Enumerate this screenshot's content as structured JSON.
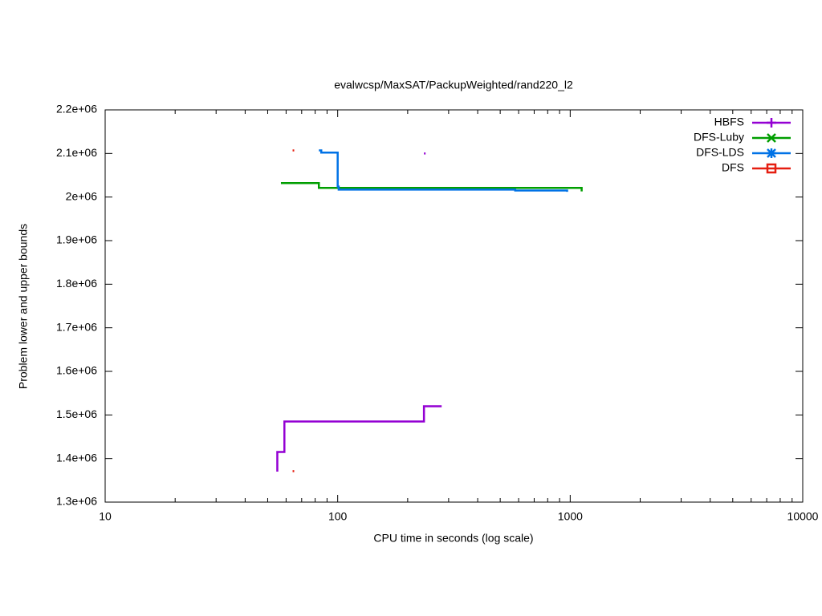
{
  "chart_data": {
    "type": "line",
    "title": "evalwcsp/MaxSAT/PackupWeighted/rand220_l2",
    "x_label": "CPU time in seconds (log scale)",
    "y_label": "Problem lower and upper bounds",
    "x_log_scale": true,
    "line_style": "steps",
    "legend_position": "top-right",
    "xlim": [
      10,
      10000
    ],
    "xticks": [
      10,
      100,
      1000,
      10000
    ],
    "ylim": [
      1300000,
      2200000
    ],
    "yticks": [
      {
        "value": 1300000,
        "label": "1.3e+06"
      },
      {
        "value": 1400000,
        "label": "1.4e+06"
      },
      {
        "value": 1500000,
        "label": "1.5e+06"
      },
      {
        "value": 1600000,
        "label": "1.6e+06"
      },
      {
        "value": 1700000,
        "label": "1.7e+06"
      },
      {
        "value": 1800000,
        "label": "1.8e+06"
      },
      {
        "value": 1900000,
        "label": "1.9e+06"
      },
      {
        "value": 2000000,
        "label": "2e+06"
      },
      {
        "value": 2100000,
        "label": "2.1e+06"
      },
      {
        "value": 2200000,
        "label": "2.2e+06"
      }
    ],
    "series": [
      {
        "name": "HBFS",
        "color": "#9400d3",
        "marker": "plus",
        "x": [
          55,
          55,
          59,
          235,
          280,
          null,
          235
        ],
        "values": [
          1370000,
          1415000,
          1485000,
          1520000,
          1520000,
          null,
          2100000
        ]
      },
      {
        "name": "DFS-Luby",
        "color": "#009e00",
        "marker": "cross",
        "x": [
          57,
          83,
          1120
        ],
        "values": [
          2032000,
          2021000,
          2013000
        ]
      },
      {
        "name": "DFS-LDS",
        "color": "#0072e6",
        "marker": "star",
        "x": [
          83,
          85,
          100,
          101,
          580,
          970
        ],
        "values": [
          2107000,
          2102000,
          2024000,
          2017000,
          2015000,
          2012000
        ]
      },
      {
        "name": "DFS",
        "color": "#e51e10",
        "marker": "square",
        "x": [
          64,
          null,
          64
        ],
        "values": [
          2107000,
          null,
          1371000
        ]
      }
    ]
  }
}
